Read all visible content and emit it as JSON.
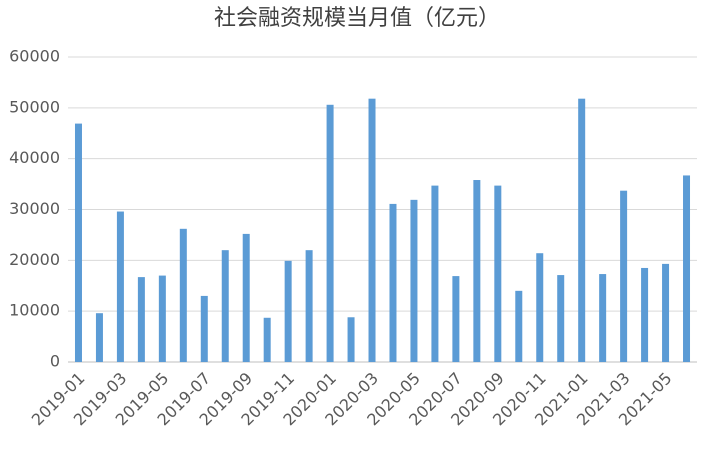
{
  "chart_data": {
    "type": "bar",
    "title": "社会融资规模当月值（亿元）",
    "categories": [
      "2019-01",
      null,
      "2019-03",
      null,
      "2019-05",
      null,
      "2019-07",
      null,
      "2019-09",
      null,
      "2019-11",
      null,
      "2020-01",
      null,
      "2020-03",
      null,
      "2020-05",
      null,
      "2020-07",
      null,
      "2020-09",
      null,
      "2020-11",
      null,
      "2021-01",
      null,
      "2021-03",
      null,
      "2021-05",
      null
    ],
    "values": [
      46900,
      9600,
      29600,
      16700,
      17000,
      26200,
      13000,
      22000,
      25200,
      8700,
      19900,
      22000,
      50600,
      8800,
      51800,
      31100,
      31900,
      34700,
      16900,
      35800,
      34700,
      14000,
      21400,
      17100,
      51800,
      17300,
      33700,
      18500,
      19300,
      36700
    ],
    "color": "#5b9bd5",
    "ylim": [
      0,
      60000
    ],
    "yticks": [
      0,
      10000,
      20000,
      30000,
      40000,
      50000,
      60000
    ],
    "grid": true
  }
}
